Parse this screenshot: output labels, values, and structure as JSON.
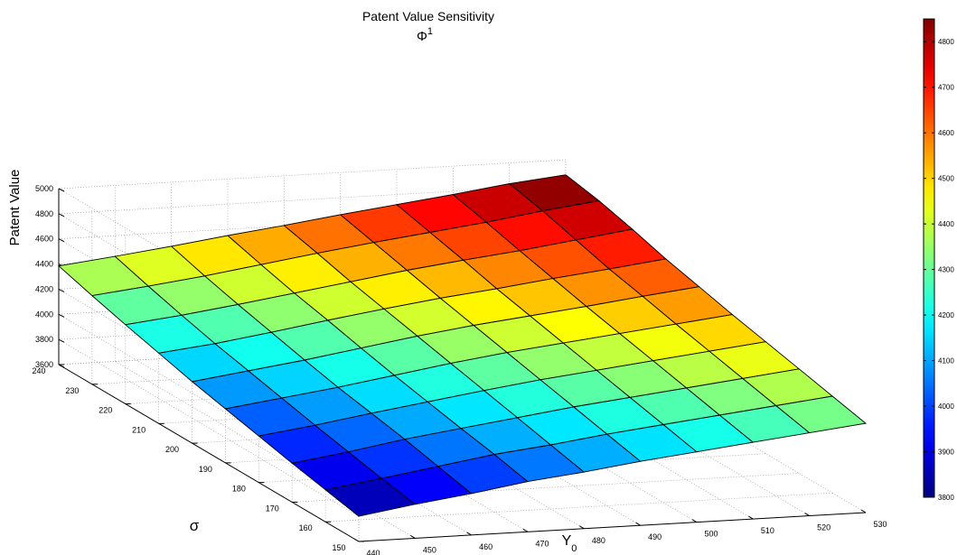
{
  "chart_data": {
    "type": "surface",
    "title": "Patent Value Sensitivity",
    "subtitle": "Φ",
    "subtitle_sup": "1",
    "xlabel": "Y",
    "xlabel_sub": "0",
    "ylabel": "σ",
    "zlabel": "Patent Value",
    "x": [
      440,
      450,
      460,
      470,
      480,
      490,
      500,
      510,
      520,
      530
    ],
    "y": [
      150,
      160,
      170,
      180,
      190,
      200,
      210,
      220,
      230,
      240
    ],
    "x_ticks": [
      "440",
      "450",
      "460",
      "470",
      "480",
      "490",
      "500",
      "510",
      "520",
      "530"
    ],
    "y_ticks": [
      "150",
      "160",
      "170",
      "180",
      "190",
      "200",
      "210",
      "220",
      "230",
      "240"
    ],
    "z_ticks": [
      "3600",
      "3800",
      "4000",
      "4200",
      "4400",
      "4600",
      "4800",
      "5000"
    ],
    "zlim": [
      3600,
      5000
    ],
    "colorbar": {
      "colormap": "jet",
      "range": [
        3800,
        4850
      ],
      "ticks": [
        "3800",
        "3900",
        "4000",
        "4100",
        "4200",
        "4300",
        "4400",
        "4500",
        "4600",
        "4700",
        "4800"
      ]
    },
    "grid": true,
    "z_rows_by_sigma": [
      [
        3800,
        3870,
        3930,
        4000,
        4050,
        4110,
        4160,
        4210,
        4260,
        4310
      ],
      [
        3855,
        3920,
        3990,
        4060,
        4110,
        4170,
        4220,
        4270,
        4320,
        4370
      ],
      [
        3910,
        3975,
        4050,
        4110,
        4170,
        4230,
        4280,
        4330,
        4380,
        4430
      ],
      [
        3970,
        4030,
        4100,
        4165,
        4230,
        4290,
        4340,
        4390,
        4440,
        4490
      ],
      [
        4030,
        4090,
        4150,
        4220,
        4290,
        4350,
        4400,
        4450,
        4500,
        4550
      ],
      [
        4090,
        4150,
        4210,
        4280,
        4350,
        4410,
        4460,
        4510,
        4565,
        4615
      ],
      [
        4160,
        4210,
        4275,
        4345,
        4410,
        4470,
        4520,
        4575,
        4625,
        4680
      ],
      [
        4230,
        4280,
        4340,
        4405,
        4470,
        4535,
        4590,
        4640,
        4700,
        4760
      ],
      [
        4305,
        4355,
        4410,
        4475,
        4540,
        4600,
        4655,
        4710,
        4775,
        4830
      ],
      [
        4385,
        4435,
        4490,
        4550,
        4605,
        4665,
        4720,
        4775,
        4835,
        4880
      ]
    ]
  }
}
